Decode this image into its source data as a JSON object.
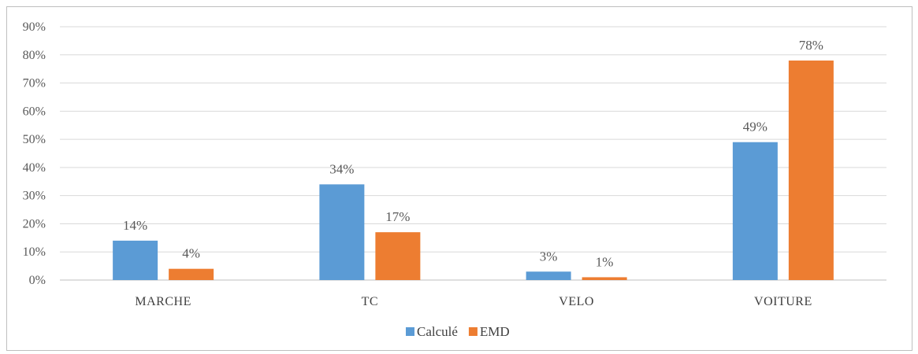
{
  "chart_data": {
    "type": "bar",
    "categories": [
      "MARCHE",
      "TC",
      "VELO",
      "VOITURE"
    ],
    "series": [
      {
        "name": "Calculé",
        "values": [
          14,
          34,
          3,
          49
        ],
        "labels": [
          "14%",
          "34%",
          "3%",
          "49%"
        ],
        "color": "#5b9bd5"
      },
      {
        "name": "EMD",
        "values": [
          4,
          17,
          1,
          78
        ],
        "labels": [
          "4%",
          "17%",
          "1%",
          "78%"
        ],
        "color": "#ed7d31"
      }
    ],
    "ylim": [
      0,
      90
    ],
    "yticks": [
      "0%",
      "10%",
      "20%",
      "30%",
      "40%",
      "50%",
      "60%",
      "70%",
      "80%",
      "90%"
    ],
    "grid": true,
    "legend_position": "bottom"
  }
}
